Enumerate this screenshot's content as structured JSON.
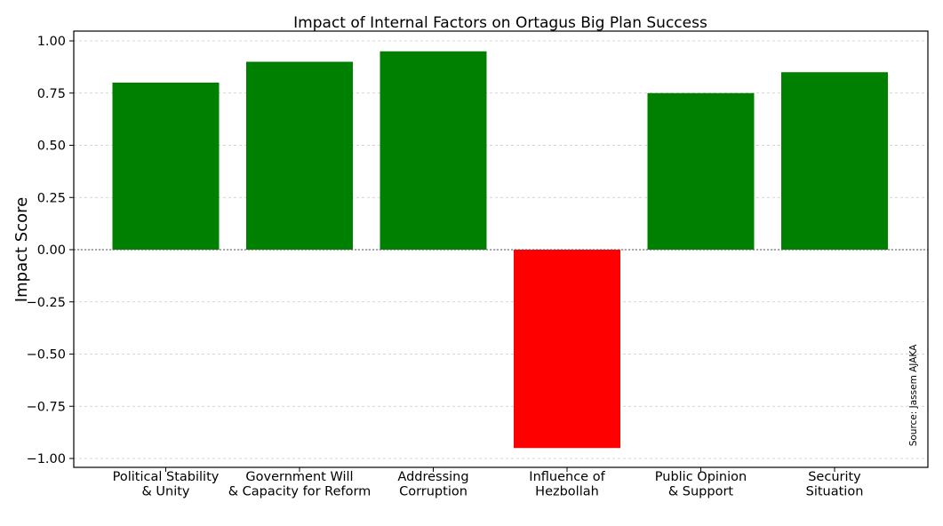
{
  "chart_data": {
    "type": "bar",
    "title": "Impact of Internal Factors on Ortagus Big Plan Success",
    "xlabel": "",
    "ylabel": "Impact Score",
    "ylim": [
      -1.05,
      1.05
    ],
    "yticks": [
      1.0,
      0.75,
      0.5,
      0.25,
      0.0,
      -0.25,
      -0.5,
      -0.75,
      -1.0
    ],
    "ytick_labels": [
      "1.00",
      "0.75",
      "0.50",
      "0.25",
      "0.00",
      "−0.25",
      "−0.50",
      "−0.75",
      "−1.00"
    ],
    "categories": [
      [
        "Political Stability",
        "& Unity"
      ],
      [
        "Government Will",
        "& Capacity for Reform"
      ],
      [
        "Addressing",
        "Corruption"
      ],
      [
        "Influence of",
        "Hezbollah"
      ],
      [
        "Public Opinion",
        "& Support"
      ],
      [
        "Security",
        "Situation"
      ]
    ],
    "values": [
      0.8,
      0.9,
      0.95,
      -0.95,
      0.75,
      0.85
    ],
    "colors": {
      "positive": "#008000",
      "negative": "#ff0000"
    },
    "grid": true,
    "horizontal_zero_line": true,
    "source_note": "Source: Jassem AJAKA"
  }
}
